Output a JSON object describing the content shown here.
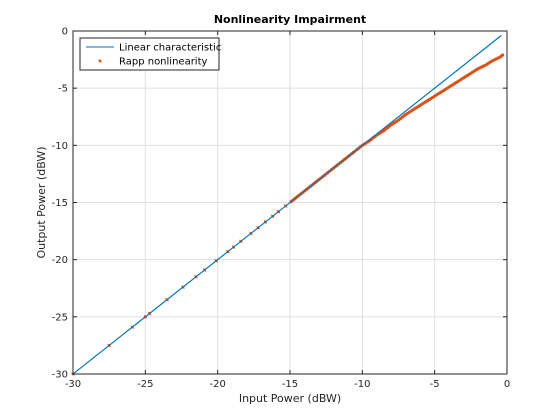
{
  "chart_data": {
    "type": "line",
    "title": "Nonlinearity Impairment",
    "xlabel": "Input Power (dBW)",
    "ylabel": "Output Power (dBW)",
    "xlim": [
      -30,
      0
    ],
    "ylim": [
      -30,
      0
    ],
    "xticks": [
      -30,
      -25,
      -20,
      -15,
      -10,
      -5,
      0
    ],
    "yticks": [
      -30,
      -25,
      -20,
      -15,
      -10,
      -5,
      0
    ],
    "xtick_labels": [
      "-30",
      "-25",
      "-20",
      "-15",
      "-10",
      "-5",
      "0"
    ],
    "ytick_labels": [
      "-30",
      "-25",
      "-20",
      "-15",
      "-10",
      "-5",
      "0"
    ],
    "grid": true,
    "legend_position": "top-left",
    "colors": {
      "linear": "#0072BD",
      "rapp": "#D95319",
      "grid": "#DFDFDF",
      "axis": "#262626"
    },
    "series": [
      {
        "name": "Linear characteristic",
        "style": "line",
        "x": [
          -30,
          -0.4
        ],
        "y": [
          -30,
          -0.4
        ]
      },
      {
        "name": "Rapp nonlinearity",
        "style": "markers",
        "x": [
          -30,
          -27.5,
          -25.9,
          -25,
          -24.7,
          -23.5,
          -22.4,
          -21.5,
          -20.9,
          -20.1,
          -19.3,
          -18.9,
          -18.4,
          -17.7,
          -17.2,
          -16.7,
          -16.2,
          -15.8,
          -15.3,
          -14.8,
          -14.5,
          -14.1,
          -13.6,
          -13,
          -12.5,
          -12,
          -11.5,
          -11,
          -10.5,
          -10,
          -9.5,
          -9,
          -8.5,
          -8,
          -7.5,
          -7,
          -6.5,
          -6,
          -5.5,
          -5,
          -4.5,
          -4,
          -3.5,
          -3,
          -2.5,
          -2,
          -1.5,
          -1,
          -0.5,
          -0.3
        ],
        "y": [
          -30,
          -27.5,
          -25.9,
          -25,
          -24.7,
          -23.5,
          -22.4,
          -21.5,
          -20.9,
          -20.1,
          -19.3,
          -18.9,
          -18.4,
          -17.7,
          -17.2,
          -16.7,
          -16.2,
          -15.8,
          -15.3,
          -14.8,
          -14.5,
          -14.1,
          -13.6,
          -13,
          -12.5,
          -12,
          -11.5,
          -11,
          -10.5,
          -10,
          -9.6,
          -9.1,
          -8.7,
          -8.2,
          -7.8,
          -7.3,
          -6.9,
          -6.5,
          -6.1,
          -5.7,
          -5.3,
          -4.9,
          -4.5,
          -4.1,
          -3.7,
          -3.3,
          -3,
          -2.6,
          -2.3,
          -2.1
        ]
      }
    ]
  }
}
